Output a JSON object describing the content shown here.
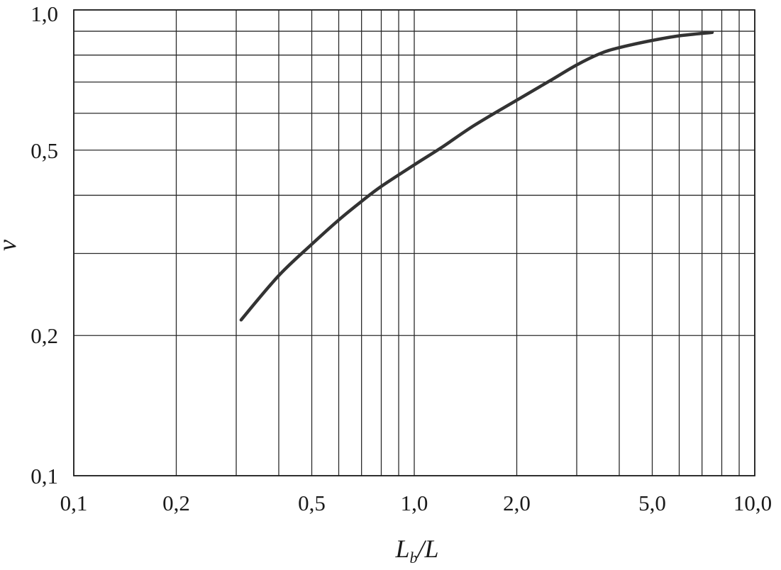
{
  "chart_data": {
    "type": "line",
    "xscale": "log",
    "yscale": "log",
    "xlim": [
      0.1,
      10.0
    ],
    "ylim": [
      0.1,
      1.0
    ],
    "x_tick_labels": [
      {
        "value": 0.1,
        "label": "0,1"
      },
      {
        "value": 0.2,
        "label": "0,2"
      },
      {
        "value": 0.5,
        "label": "0,5"
      },
      {
        "value": 1.0,
        "label": "1,0"
      },
      {
        "value": 2.0,
        "label": "2,0"
      },
      {
        "value": 5.0,
        "label": "5,0"
      },
      {
        "value": 10.0,
        "label": "10,0"
      }
    ],
    "y_tick_labels": [
      {
        "value": 0.1,
        "label": "0,1"
      },
      {
        "value": 0.2,
        "label": "0,2"
      },
      {
        "value": 0.5,
        "label": "0,5"
      },
      {
        "value": 1.0,
        "label": "1,0"
      }
    ],
    "x_gridlines": [
      0.1,
      0.2,
      0.3,
      0.4,
      0.5,
      0.6,
      0.7,
      0.8,
      0.9,
      1,
      2,
      3,
      4,
      5,
      6,
      7,
      8,
      9,
      10
    ],
    "y_gridlines": [
      0.1,
      0.2,
      0.3,
      0.4,
      0.5,
      0.6,
      0.7,
      0.8,
      0.9,
      1.0
    ],
    "grid": true,
    "xlabel": {
      "main": "L",
      "sub": "b",
      "rest": "/L"
    },
    "ylabel": "ν",
    "series": [
      {
        "x": [
          0.31,
          0.4,
          0.5,
          0.6,
          0.7,
          0.8,
          1.0,
          1.2,
          1.5,
          2.0,
          2.5,
          3.0,
          3.5,
          4.0,
          5.0,
          6.0,
          7.5
        ],
        "y": [
          0.216,
          0.269,
          0.314,
          0.354,
          0.388,
          0.418,
          0.465,
          0.506,
          0.565,
          0.64,
          0.704,
          0.762,
          0.805,
          0.83,
          0.86,
          0.88,
          0.895
        ]
      }
    ]
  }
}
